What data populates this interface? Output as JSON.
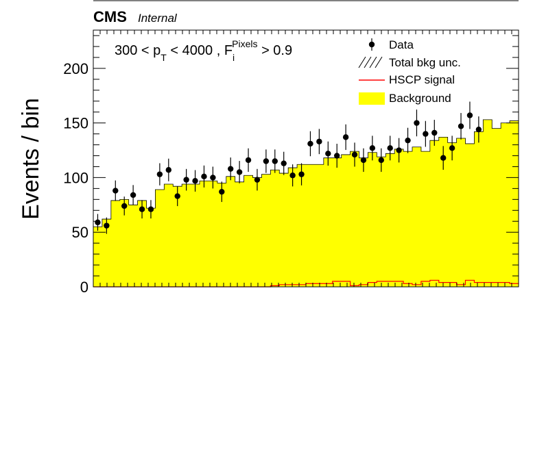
{
  "header": {
    "experiment": "CMS",
    "status": "Internal"
  },
  "annotation": {
    "prefix": "300 < p",
    "pt_sub": "T",
    "middle": " < 4000 , F",
    "f_sub": "i",
    "f_sup": "Pixels",
    "suffix": " > 0.9"
  },
  "legend": [
    {
      "key": "data",
      "label": "Data"
    },
    {
      "key": "unc",
      "label": "Total bkg unc."
    },
    {
      "key": "signal",
      "label": "HSCP signal"
    },
    {
      "key": "bkg",
      "label": "Background"
    }
  ],
  "colors": {
    "background": "#ffff00",
    "signal": "#ff0000",
    "data": "#000000"
  },
  "chart_data": {
    "type": "bar",
    "title": "",
    "xlabel": "",
    "ylabel": "Events / bin",
    "ylim": [
      0,
      235
    ],
    "yticks": [
      0,
      50,
      100,
      150,
      200
    ],
    "nbins": 48,
    "grid": false,
    "legend_position": "top-right",
    "series": [
      {
        "name": "Background",
        "style": "filled-histogram",
        "values": [
          55,
          62,
          79,
          80,
          75,
          79,
          72,
          89,
          94,
          92,
          94,
          94,
          97,
          97,
          95,
          101,
          96,
          102,
          100,
          103,
          107,
          104,
          109,
          112,
          112,
          112,
          118,
          118,
          121,
          124,
          118,
          123,
          119,
          122,
          126,
          124,
          128,
          124,
          134,
          137,
          132,
          136,
          131,
          142,
          153,
          145,
          150,
          152
        ]
      },
      {
        "name": "HSCP signal",
        "style": "line-histogram",
        "values": [
          0,
          0,
          0,
          0,
          0,
          0,
          0,
          0,
          0,
          0,
          0,
          0,
          0,
          0,
          0,
          0,
          0,
          0,
          0,
          0,
          1,
          2,
          2,
          2,
          3,
          3,
          3,
          5,
          5,
          1,
          2,
          4,
          5,
          5,
          5,
          3,
          2,
          5,
          6,
          4,
          4,
          2,
          6,
          4,
          4,
          4,
          4,
          3
        ]
      },
      {
        "name": "Data",
        "style": "points",
        "values": [
          59,
          56,
          88,
          74,
          84,
          71,
          71,
          103,
          107,
          83,
          98,
          97,
          101,
          100,
          87,
          108,
          105,
          116,
          98,
          115,
          115,
          113,
          102,
          103,
          131,
          133,
          122,
          120,
          137,
          121,
          116,
          127,
          116,
          127,
          125,
          134,
          150,
          140,
          141,
          118,
          127,
          147,
          157,
          144,
          null,
          null,
          null,
          null
        ]
      }
    ]
  }
}
